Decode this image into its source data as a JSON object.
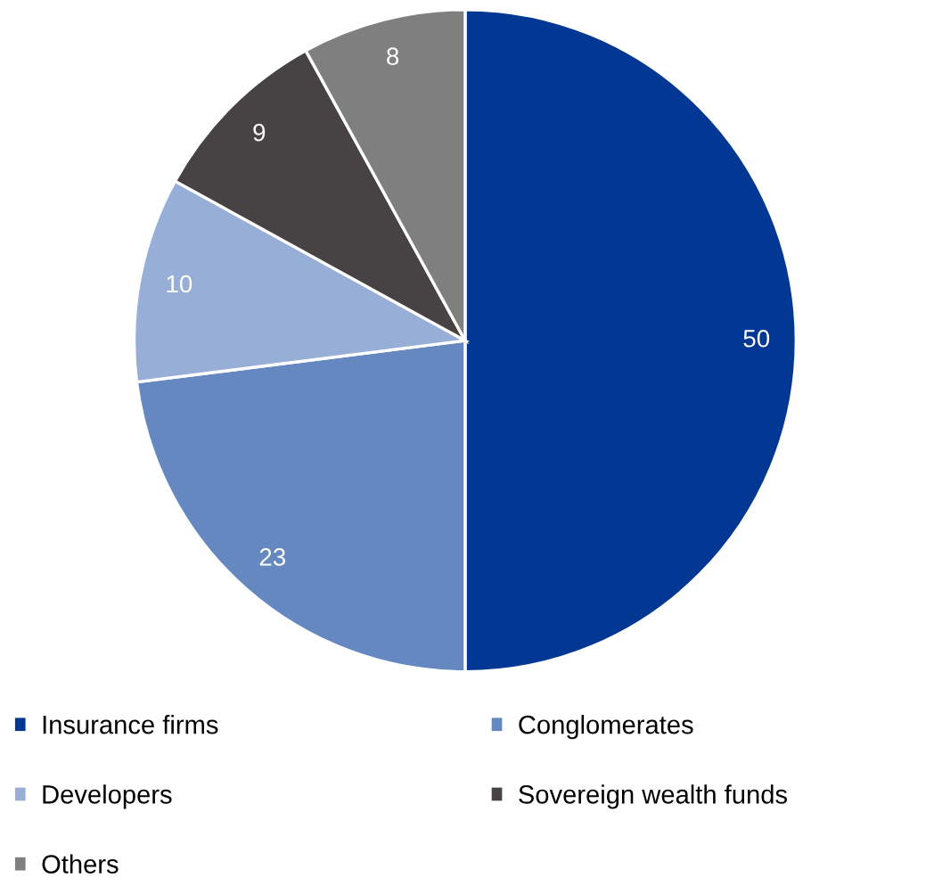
{
  "chart_data": {
    "type": "pie",
    "categories": [
      "Insurance firms",
      "Conglomerates",
      "Developers",
      "Sovereign wealth funds",
      "Others"
    ],
    "values": [
      50,
      23,
      10,
      9,
      8
    ],
    "colors": [
      "#023893",
      "#6688c0",
      "#97aed6",
      "#474244",
      "#7f7f7f"
    ],
    "data_labels": true,
    "legend": "bottom"
  }
}
